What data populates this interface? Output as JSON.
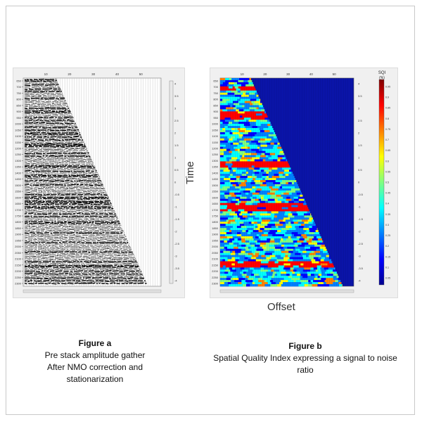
{
  "figure_a": {
    "caption_title": "Figure a",
    "caption_lines": [
      "Pre stack amplitude gather",
      "After NMO correction  and",
      "stationarization"
    ],
    "x_ticks": [
      "10",
      "20",
      "30",
      "40",
      "50"
    ],
    "y_ticks": [
      "650",
      "700",
      "750",
      "800",
      "850",
      "900",
      "950",
      "1000",
      "1050",
      "1100",
      "1150",
      "1200",
      "1250",
      "1300",
      "1350",
      "1400",
      "1450",
      "1500",
      "1550",
      "1600",
      "1650",
      "1700",
      "1750",
      "1800",
      "1850",
      "1900",
      "1950",
      "2000",
      "2050",
      "2100",
      "2150",
      "2200",
      "2250",
      "2300"
    ],
    "colorbar_ticks": [
      "4",
      "3.5",
      "3",
      "2.5",
      "2",
      "1.5",
      "1",
      "0.5",
      "0",
      "-0.5",
      "-1",
      "-1.5",
      "-2",
      "-2.5",
      "-3",
      "-3.5",
      "-4"
    ]
  },
  "figure_b": {
    "caption_title": "Figure b",
    "caption_lines": [
      "Spatial Quality Index expressing a signal to noise",
      "ratio"
    ],
    "y_axis_word": "Time",
    "x_axis_word": "Offset",
    "colorbar_title": "SQI",
    "colorbar_unit": "(%)",
    "x_ticks": [
      "10",
      "20",
      "30",
      "40",
      "50"
    ],
    "y_ticks": [
      "650",
      "700",
      "750",
      "800",
      "850",
      "900",
      "950",
      "1000",
      "1050",
      "1100",
      "1150",
      "1200",
      "1250",
      "1300",
      "1350",
      "1400",
      "1450",
      "1500",
      "1550",
      "1600",
      "1650",
      "1700",
      "1750",
      "1800",
      "1850",
      "1900",
      "1950",
      "2000",
      "2050",
      "2100",
      "2150",
      "2200",
      "2250",
      "2300"
    ],
    "amplitude_ticks": [
      "4",
      "3.5",
      "3",
      "2.5",
      "2",
      "1.5",
      "1",
      "0.5",
      "0",
      "-0.5",
      "-1",
      "-1.5",
      "-2",
      "-2.5",
      "-3",
      "-3.5",
      "-4"
    ],
    "sqi_ticks": [
      "0.95",
      "0.9",
      "0.85",
      "0.8",
      "0.75",
      "0.7",
      "0.65",
      "0.6",
      "0.55",
      "0.5",
      "0.45",
      "0.4",
      "0.35",
      "0.3",
      "0.25",
      "0.2",
      "0.15",
      "0.1",
      "0.05"
    ]
  },
  "colors": {
    "jet": [
      "#00008f",
      "#0000ff",
      "#0080ff",
      "#00ffff",
      "#80ff80",
      "#ffff00",
      "#ff8000",
      "#ff0000",
      "#800000"
    ],
    "background_blue": "#0a14a8"
  }
}
